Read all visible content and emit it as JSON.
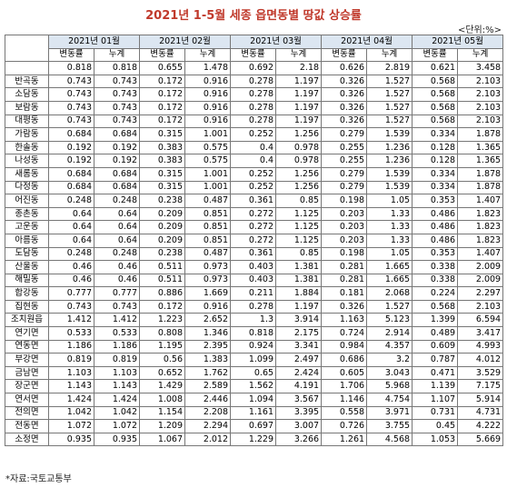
{
  "header": {
    "title": "2021년 1-5월 세종 읍면동별 땅값 상승률",
    "unit": "<단위:%>"
  },
  "table": {
    "months": [
      "2021년 01월",
      "2021년 02월",
      "2021년 03월",
      "2021년 04월",
      "2021년 05월"
    ],
    "subheaders": [
      "변동률",
      "누계"
    ],
    "rows": [
      {
        "name": null,
        "values": [
          0.818,
          0.818,
          0.655,
          1.478,
          0.692,
          2.18,
          0.626,
          2.819,
          0.621,
          3.458
        ]
      },
      {
        "name": "반곡동",
        "values": [
          0.743,
          0.743,
          0.172,
          0.916,
          0.278,
          1.197,
          0.326,
          1.527,
          0.568,
          2.103
        ]
      },
      {
        "name": "소담동",
        "values": [
          0.743,
          0.743,
          0.172,
          0.916,
          0.278,
          1.197,
          0.326,
          1.527,
          0.568,
          2.103
        ]
      },
      {
        "name": "보람동",
        "values": [
          0.743,
          0.743,
          0.172,
          0.916,
          0.278,
          1.197,
          0.326,
          1.527,
          0.568,
          2.103
        ]
      },
      {
        "name": "대평동",
        "values": [
          0.743,
          0.743,
          0.172,
          0.916,
          0.278,
          1.197,
          0.326,
          1.527,
          0.568,
          2.103
        ]
      },
      {
        "name": "가람동",
        "values": [
          0.684,
          0.684,
          0.315,
          1.001,
          0.252,
          1.256,
          0.279,
          1.539,
          0.334,
          1.878
        ]
      },
      {
        "name": "한솔동",
        "values": [
          0.192,
          0.192,
          0.383,
          0.575,
          0.4,
          0.978,
          0.255,
          1.236,
          0.128,
          1.365
        ]
      },
      {
        "name": "나성동",
        "values": [
          0.192,
          0.192,
          0.383,
          0.575,
          0.4,
          0.978,
          0.255,
          1.236,
          0.128,
          1.365
        ]
      },
      {
        "name": "새롬동",
        "values": [
          0.684,
          0.684,
          0.315,
          1.001,
          0.252,
          1.256,
          0.279,
          1.539,
          0.334,
          1.878
        ]
      },
      {
        "name": "다정동",
        "values": [
          0.684,
          0.684,
          0.315,
          1.001,
          0.252,
          1.256,
          0.279,
          1.539,
          0.334,
          1.878
        ]
      },
      {
        "name": "어진동",
        "values": [
          0.248,
          0.248,
          0.238,
          0.487,
          0.361,
          0.85,
          0.198,
          1.05,
          0.353,
          1.407
        ]
      },
      {
        "name": "종촌동",
        "values": [
          0.64,
          0.64,
          0.209,
          0.851,
          0.272,
          1.125,
          0.203,
          1.33,
          0.486,
          1.823
        ]
      },
      {
        "name": "고운동",
        "values": [
          0.64,
          0.64,
          0.209,
          0.851,
          0.272,
          1.125,
          0.203,
          1.33,
          0.486,
          1.823
        ]
      },
      {
        "name": "아름동",
        "values": [
          0.64,
          0.64,
          0.209,
          0.851,
          0.272,
          1.125,
          0.203,
          1.33,
          0.486,
          1.823
        ]
      },
      {
        "name": "도담동",
        "values": [
          0.248,
          0.248,
          0.238,
          0.487,
          0.361,
          0.85,
          0.198,
          1.05,
          0.353,
          1.407
        ]
      },
      {
        "name": "산울동",
        "values": [
          0.46,
          0.46,
          0.511,
          0.973,
          0.403,
          1.381,
          0.281,
          1.665,
          0.338,
          2.009
        ]
      },
      {
        "name": "해밀동",
        "values": [
          0.46,
          0.46,
          0.511,
          0.973,
          0.403,
          1.381,
          0.281,
          1.665,
          0.338,
          2.009
        ]
      },
      {
        "name": "합강동",
        "values": [
          0.777,
          0.777,
          0.886,
          1.669,
          0.211,
          1.884,
          0.181,
          2.068,
          0.224,
          2.297
        ]
      },
      {
        "name": "집현동",
        "values": [
          0.743,
          0.743,
          0.172,
          0.916,
          0.278,
          1.197,
          0.326,
          1.527,
          0.568,
          2.103
        ]
      },
      {
        "name": "조치원읍",
        "values": [
          1.412,
          1.412,
          1.223,
          2.652,
          1.3,
          3.914,
          1.163,
          5.123,
          1.399,
          6.594
        ]
      },
      {
        "name": "연기면",
        "values": [
          0.533,
          0.533,
          0.808,
          1.346,
          0.818,
          2.175,
          0.724,
          2.914,
          0.489,
          3.417
        ]
      },
      {
        "name": "연동면",
        "values": [
          1.186,
          1.186,
          1.195,
          2.395,
          0.924,
          3.341,
          0.984,
          4.357,
          0.609,
          4.993
        ]
      },
      {
        "name": "부강면",
        "values": [
          0.819,
          0.819,
          0.56,
          1.383,
          1.099,
          2.497,
          0.686,
          3.2,
          0.787,
          4.012
        ]
      },
      {
        "name": "금남면",
        "values": [
          1.103,
          1.103,
          0.652,
          1.762,
          0.65,
          2.424,
          0.605,
          3.043,
          0.471,
          3.529
        ]
      },
      {
        "name": "장군면",
        "values": [
          1.143,
          1.143,
          1.429,
          2.589,
          1.562,
          4.191,
          1.706,
          5.968,
          1.139,
          7.175
        ]
      },
      {
        "name": "연서면",
        "values": [
          1.424,
          1.424,
          1.008,
          2.446,
          1.094,
          3.567,
          1.146,
          4.754,
          1.107,
          5.914
        ]
      },
      {
        "name": "전의면",
        "values": [
          1.042,
          1.042,
          1.154,
          2.208,
          1.161,
          3.395,
          0.558,
          3.971,
          0.731,
          4.731
        ]
      },
      {
        "name": "전동면",
        "values": [
          1.072,
          1.072,
          1.209,
          2.294,
          0.697,
          3.007,
          0.726,
          3.755,
          0.45,
          4.222
        ]
      },
      {
        "name": "소정면",
        "values": [
          0.935,
          0.935,
          1.067,
          2.012,
          1.229,
          3.266,
          1.261,
          4.568,
          1.053,
          5.669
        ]
      }
    ]
  },
  "footer": {
    "source": "*자료:국토교통부"
  }
}
